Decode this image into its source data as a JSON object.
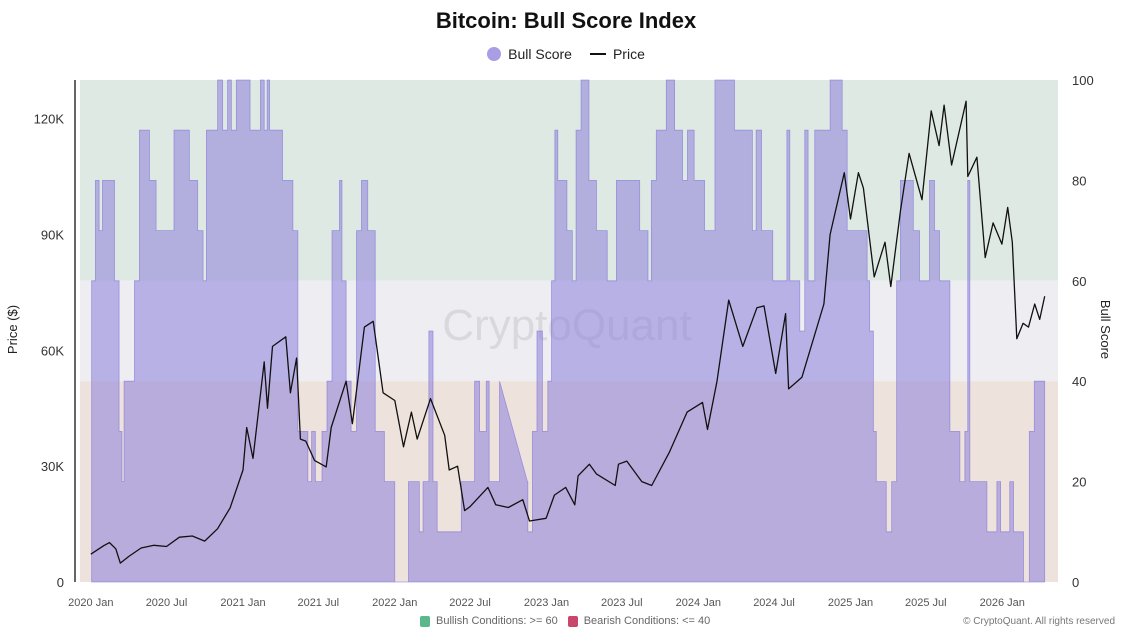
{
  "chart_data": {
    "type": "area+line",
    "title": "Bitcoin: Bull Score Index",
    "legend": [
      {
        "name": "Bull Score",
        "color": "#a99ee6",
        "marker": "circle"
      },
      {
        "name": "Price",
        "color": "#111111",
        "marker": "line"
      }
    ],
    "legend_position": "top-center",
    "ylabel_left": "Price ($)",
    "ylabel_right": "Bull Score",
    "ylim_left": [
      0,
      130000
    ],
    "ylim_right": [
      0,
      100
    ],
    "xlim": [
      "2019-12-06",
      "2026-05-15"
    ],
    "x_ticks": [
      "2020 Jan",
      "2020 Jul",
      "2021 Jan",
      "2021 Jul",
      "2022 Jan",
      "2022 Jul",
      "2023 Jan",
      "2023 Jul",
      "2024 Jan",
      "2024 Jul",
      "2025 Jan",
      "2025 Jul",
      "2026 Jan"
    ],
    "x_tick_dates": [
      "2020-01-01",
      "2020-07-01",
      "2021-01-01",
      "2021-07-01",
      "2022-01-01",
      "2022-07-01",
      "2023-01-01",
      "2023-07-01",
      "2024-01-01",
      "2024-07-01",
      "2025-01-01",
      "2025-07-01",
      "2026-01-01"
    ],
    "y_ticks_left": [
      "0",
      "30K",
      "60K",
      "90K",
      "120K"
    ],
    "y_tick_values_left": [
      0,
      30000,
      60000,
      90000,
      120000
    ],
    "y_ticks_right": [
      "0",
      "20",
      "40",
      "60",
      "80",
      "100"
    ],
    "y_tick_values_right": [
      0,
      20,
      40,
      60,
      80,
      100
    ],
    "bands": [
      {
        "from": 60,
        "to": 100,
        "color": "#dfe9e3",
        "label": "Bullish Conditions: >= 60",
        "legend_color": "#5cb88a"
      },
      {
        "from": 40,
        "to": 60,
        "color": "#eeeef2"
      },
      {
        "from": 0,
        "to": 40,
        "color": "#eee3dc",
        "label": "Bearish Conditions: <= 40",
        "legend_color": "#c9476a"
      }
    ],
    "bull_score": {
      "name": "Bull Score",
      "color": "#8c82dc",
      "interpolated_segments": [
        [
          "2022-09-10",
          "2022-11-16"
        ]
      ],
      "points": [
        [
          "2020-01-03",
          60
        ],
        [
          "2020-01-12",
          80
        ],
        [
          "2020-01-21",
          70
        ],
        [
          "2020-01-29",
          80
        ],
        [
          "2020-02-27",
          60
        ],
        [
          "2020-03-09",
          30
        ],
        [
          "2020-03-16",
          20
        ],
        [
          "2020-03-21",
          40
        ],
        [
          "2020-04-15",
          60
        ],
        [
          "2020-04-27",
          90
        ],
        [
          "2020-05-21",
          80
        ],
        [
          "2020-06-06",
          70
        ],
        [
          "2020-07-19",
          90
        ],
        [
          "2020-08-25",
          80
        ],
        [
          "2020-09-14",
          70
        ],
        [
          "2020-09-27",
          60
        ],
        [
          "2020-10-05",
          90
        ],
        [
          "2020-11-01",
          100
        ],
        [
          "2020-11-13",
          90
        ],
        [
          "2020-11-25",
          100
        ],
        [
          "2020-12-04",
          90
        ],
        [
          "2020-12-16",
          100
        ],
        [
          "2021-01-18",
          90
        ],
        [
          "2021-02-12",
          100
        ],
        [
          "2021-02-21",
          90
        ],
        [
          "2021-02-28",
          100
        ],
        [
          "2021-03-06",
          90
        ],
        [
          "2021-04-06",
          80
        ],
        [
          "2021-05-01",
          70
        ],
        [
          "2021-05-13",
          30
        ],
        [
          "2021-06-06",
          20
        ],
        [
          "2021-06-15",
          30
        ],
        [
          "2021-06-24",
          20
        ],
        [
          "2021-07-10",
          30
        ],
        [
          "2021-07-22",
          40
        ],
        [
          "2021-08-03",
          70
        ],
        [
          "2021-08-21",
          80
        ],
        [
          "2021-08-27",
          60
        ],
        [
          "2021-09-06",
          40
        ],
        [
          "2021-09-18",
          30
        ],
        [
          "2021-10-01",
          70
        ],
        [
          "2021-10-13",
          80
        ],
        [
          "2021-10-28",
          70
        ],
        [
          "2021-11-15",
          30
        ],
        [
          "2021-12-07",
          20
        ],
        [
          "2022-01-01",
          0
        ],
        [
          "2022-02-03",
          20
        ],
        [
          "2022-03-01",
          10
        ],
        [
          "2022-03-10",
          20
        ],
        [
          "2022-03-24",
          50
        ],
        [
          "2022-04-03",
          20
        ],
        [
          "2022-04-13",
          10
        ],
        [
          "2022-06-10",
          20
        ],
        [
          "2022-07-12",
          40
        ],
        [
          "2022-07-24",
          30
        ],
        [
          "2022-08-09",
          40
        ],
        [
          "2022-08-16",
          20
        ],
        [
          "2022-09-10",
          40
        ],
        [
          "2022-11-16",
          20
        ],
        [
          "2022-11-17",
          10
        ],
        [
          "2022-11-28",
          30
        ],
        [
          "2022-12-09",
          50
        ],
        [
          "2022-12-22",
          30
        ],
        [
          "2023-01-04",
          40
        ],
        [
          "2023-01-13",
          60
        ],
        [
          "2023-01-21",
          90
        ],
        [
          "2023-01-28",
          80
        ],
        [
          "2023-02-19",
          70
        ],
        [
          "2023-03-04",
          60
        ],
        [
          "2023-03-13",
          90
        ],
        [
          "2023-03-25",
          100
        ],
        [
          "2023-04-13",
          80
        ],
        [
          "2023-05-01",
          70
        ],
        [
          "2023-05-27",
          60
        ],
        [
          "2023-06-18",
          80
        ],
        [
          "2023-08-13",
          70
        ],
        [
          "2023-09-02",
          60
        ],
        [
          "2023-09-10",
          80
        ],
        [
          "2023-09-22",
          90
        ],
        [
          "2023-10-16",
          100
        ],
        [
          "2023-11-05",
          90
        ],
        [
          "2023-11-24",
          80
        ],
        [
          "2023-12-06",
          90
        ],
        [
          "2023-12-22",
          80
        ],
        [
          "2024-01-16",
          70
        ],
        [
          "2024-02-10",
          100
        ],
        [
          "2024-03-28",
          90
        ],
        [
          "2024-05-10",
          70
        ],
        [
          "2024-05-19",
          90
        ],
        [
          "2024-06-01",
          70
        ],
        [
          "2024-06-28",
          60
        ],
        [
          "2024-08-01",
          90
        ],
        [
          "2024-08-08",
          60
        ],
        [
          "2024-09-01",
          50
        ],
        [
          "2024-09-13",
          90
        ],
        [
          "2024-09-21",
          60
        ],
        [
          "2024-10-07",
          90
        ],
        [
          "2024-11-13",
          100
        ],
        [
          "2024-12-12",
          90
        ],
        [
          "2024-12-24",
          70
        ],
        [
          "2025-02-10",
          60
        ],
        [
          "2025-02-16",
          50
        ],
        [
          "2025-02-25",
          30
        ],
        [
          "2025-03-04",
          20
        ],
        [
          "2025-03-28",
          10
        ],
        [
          "2025-04-10",
          20
        ],
        [
          "2025-04-22",
          60
        ],
        [
          "2025-05-01",
          80
        ],
        [
          "2025-06-01",
          70
        ],
        [
          "2025-06-16",
          60
        ],
        [
          "2025-07-10",
          80
        ],
        [
          "2025-07-22",
          70
        ],
        [
          "2025-08-03",
          60
        ],
        [
          "2025-08-28",
          30
        ],
        [
          "2025-09-21",
          20
        ],
        [
          "2025-10-03",
          30
        ],
        [
          "2025-10-10",
          80
        ],
        [
          "2025-10-15",
          20
        ],
        [
          "2025-11-25",
          10
        ],
        [
          "2025-12-19",
          20
        ],
        [
          "2025-12-28",
          10
        ],
        [
          "2026-01-19",
          20
        ],
        [
          "2026-01-28",
          10
        ],
        [
          "2026-02-21",
          0
        ],
        [
          "2026-03-07",
          30
        ],
        [
          "2026-03-19",
          40
        ],
        [
          "2026-04-13",
          40
        ]
      ]
    },
    "price": {
      "name": "Price",
      "color": "#111111",
      "points": [
        [
          "2020-01-01",
          7200
        ],
        [
          "2020-02-01",
          9400
        ],
        [
          "2020-02-15",
          10200
        ],
        [
          "2020-03-01",
          8600
        ],
        [
          "2020-03-12",
          4900
        ],
        [
          "2020-04-01",
          6600
        ],
        [
          "2020-05-01",
          8800
        ],
        [
          "2020-06-01",
          9500
        ],
        [
          "2020-07-01",
          9200
        ],
        [
          "2020-08-01",
          11600
        ],
        [
          "2020-09-01",
          11900
        ],
        [
          "2020-10-01",
          10600
        ],
        [
          "2020-11-01",
          13800
        ],
        [
          "2020-12-01",
          19200
        ],
        [
          "2021-01-01",
          29000
        ],
        [
          "2021-01-10",
          40000
        ],
        [
          "2021-01-25",
          32000
        ],
        [
          "2021-02-21",
          57000
        ],
        [
          "2021-03-01",
          45000
        ],
        [
          "2021-03-13",
          61000
        ],
        [
          "2021-04-14",
          63500
        ],
        [
          "2021-04-25",
          49000
        ],
        [
          "2021-05-10",
          58000
        ],
        [
          "2021-05-19",
          37000
        ],
        [
          "2021-06-01",
          36500
        ],
        [
          "2021-06-22",
          31500
        ],
        [
          "2021-07-20",
          29800
        ],
        [
          "2021-08-01",
          40000
        ],
        [
          "2021-09-06",
          52000
        ],
        [
          "2021-09-21",
          41000
        ],
        [
          "2021-10-20",
          66000
        ],
        [
          "2021-11-10",
          67500
        ],
        [
          "2021-12-04",
          49000
        ],
        [
          "2022-01-01",
          47000
        ],
        [
          "2022-01-22",
          35000
        ],
        [
          "2022-02-10",
          44000
        ],
        [
          "2022-02-24",
          37000
        ],
        [
          "2022-03-28",
          47500
        ],
        [
          "2022-05-01",
          38000
        ],
        [
          "2022-05-12",
          29000
        ],
        [
          "2022-06-01",
          30000
        ],
        [
          "2022-06-18",
          18500
        ],
        [
          "2022-07-01",
          19500
        ],
        [
          "2022-08-13",
          24500
        ],
        [
          "2022-09-01",
          20000
        ],
        [
          "2022-10-01",
          19300
        ],
        [
          "2022-11-05",
          21300
        ],
        [
          "2022-11-21",
          15800
        ],
        [
          "2022-12-31",
          16500
        ],
        [
          "2023-01-20",
          22500
        ],
        [
          "2023-02-16",
          24500
        ],
        [
          "2023-03-10",
          20000
        ],
        [
          "2023-03-18",
          27500
        ],
        [
          "2023-04-14",
          30500
        ],
        [
          "2023-05-01",
          28000
        ],
        [
          "2023-06-15",
          25000
        ],
        [
          "2023-06-23",
          30500
        ],
        [
          "2023-07-13",
          31300
        ],
        [
          "2023-08-18",
          26000
        ],
        [
          "2023-09-11",
          25000
        ],
        [
          "2023-10-23",
          33500
        ],
        [
          "2023-12-05",
          44000
        ],
        [
          "2024-01-11",
          46500
        ],
        [
          "2024-01-23",
          39500
        ],
        [
          "2024-02-15",
          52000
        ],
        [
          "2024-03-14",
          73000
        ],
        [
          "2024-04-17",
          61000
        ],
        [
          "2024-05-21",
          71000
        ],
        [
          "2024-06-07",
          71500
        ],
        [
          "2024-07-05",
          54000
        ],
        [
          "2024-07-29",
          69500
        ],
        [
          "2024-08-05",
          50000
        ],
        [
          "2024-09-06",
          53000
        ],
        [
          "2024-10-29",
          72000
        ],
        [
          "2024-11-13",
          90000
        ],
        [
          "2024-12-17",
          106000
        ],
        [
          "2025-01-01",
          94000
        ],
        [
          "2025-01-20",
          106000
        ],
        [
          "2025-02-01",
          102000
        ],
        [
          "2025-02-27",
          79000
        ],
        [
          "2025-03-25",
          88000
        ],
        [
          "2025-04-08",
          76500
        ],
        [
          "2025-05-01",
          96000
        ],
        [
          "2025-05-22",
          111000
        ],
        [
          "2025-06-22",
          99000
        ],
        [
          "2025-07-14",
          122000
        ],
        [
          "2025-08-02",
          113000
        ],
        [
          "2025-08-14",
          123500
        ],
        [
          "2025-09-01",
          108000
        ],
        [
          "2025-10-06",
          124500
        ],
        [
          "2025-10-10",
          105000
        ],
        [
          "2025-11-01",
          110000
        ],
        [
          "2025-11-21",
          84000
        ],
        [
          "2025-12-10",
          93000
        ],
        [
          "2025-12-31",
          87500
        ],
        [
          "2026-01-14",
          97000
        ],
        [
          "2026-01-25",
          88000
        ],
        [
          "2026-02-05",
          63000
        ],
        [
          "2026-02-20",
          67000
        ],
        [
          "2026-03-05",
          66000
        ],
        [
          "2026-03-20",
          72000
        ],
        [
          "2026-04-01",
          68000
        ],
        [
          "2026-04-13",
          74000
        ]
      ]
    },
    "watermark": "CryptoQuant",
    "copyright": "© CryptoQuant. All rights reserved"
  }
}
